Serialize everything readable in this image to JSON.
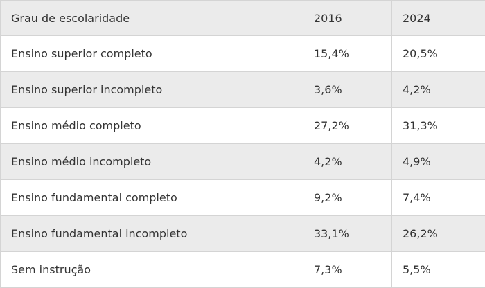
{
  "table": {
    "header": [
      "Grau de escolaridade",
      "2016",
      "2024"
    ],
    "rows": [
      [
        "Ensino superior completo",
        "15,4%",
        "20,5%"
      ],
      [
        "Ensino superior incompleto",
        "3,6%",
        "4,2%"
      ],
      [
        "Ensino médio completo",
        "27,2%",
        "31,3%"
      ],
      [
        "Ensino médio incompleto",
        "4,2%",
        "4,9%"
      ],
      [
        "Ensino fundamental completo",
        "9,2%",
        "7,4%"
      ],
      [
        "Ensino fundamental incompleto",
        "33,1%",
        "26,2%"
      ],
      [
        "Sem instrução",
        "7,3%",
        "5,5%"
      ]
    ]
  }
}
